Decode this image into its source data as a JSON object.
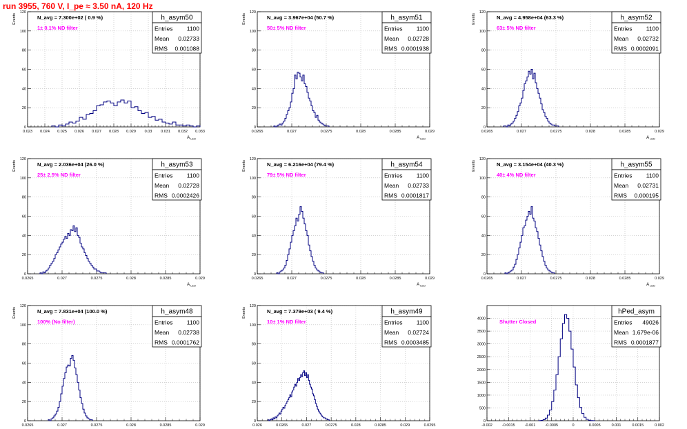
{
  "header": {
    "title": "run 3955,   760 V, I_pe ≈ 3.50 nA, 120 Hz"
  },
  "colors": {
    "title": "#ff0000",
    "histogram": "#000080",
    "annotation": "#ff00ff",
    "grid": "#bbbbbb"
  },
  "stat_labels": {
    "entries": "Entries",
    "mean": "Mean",
    "rms": "RMS"
  },
  "chart_data": [
    {
      "type": "bar",
      "name": "h_asym50",
      "navg": "N_avg = 7.300e+02 ( 0.9 %)",
      "annotation": "1± 0.1% ND filter",
      "entries": "1100",
      "mean": "0.02733",
      "rms": "0.001088",
      "xlim": [
        0.023,
        0.033
      ],
      "ylim": [
        0,
        120
      ],
      "xticks": [
        "0.023",
        "0.024",
        "0.025",
        "0.026",
        "0.027",
        "0.028",
        "0.029",
        "0.03",
        "0.031",
        "0.032",
        "0.033"
      ],
      "yticks": [
        "0",
        "20",
        "40",
        "60",
        "80",
        "100",
        "120"
      ],
      "xlabel": "A",
      "xsub": "LED",
      "ylabel": "Events",
      "bin_start": 0.0244,
      "bin_width": 0.0002,
      "values": [
        1,
        0,
        2,
        1,
        3,
        5,
        4,
        6,
        10,
        8,
        13,
        14,
        17,
        22,
        23,
        26,
        27,
        25,
        22,
        26,
        28,
        25,
        27,
        20,
        21,
        17,
        14,
        15,
        10,
        11,
        7,
        8,
        5,
        4,
        3,
        5,
        2,
        2,
        1,
        2,
        1,
        0,
        1
      ]
    },
    {
      "type": "bar",
      "name": "h_asym51",
      "navg": "N_avg = 3.967e+04 (50.7 %)",
      "annotation": "50± 5% ND filter",
      "entries": "1100",
      "mean": "0.02728",
      "rms": "0.0001938",
      "xlim": [
        0.0265,
        0.029
      ],
      "ylim": [
        0,
        120
      ],
      "xticks": [
        "0.0265",
        "0.027",
        "0.0275",
        "0.028",
        "0.0285",
        "0.029"
      ],
      "yticks": [
        "0",
        "20",
        "40",
        "60",
        "80",
        "100",
        "120"
      ],
      "xlabel": "A",
      "xsub": "LED",
      "ylabel": "Events",
      "bin_start": 0.02674,
      "bin_width": 2e-05,
      "values": [
        1,
        0,
        1,
        2,
        3,
        2,
        4,
        6,
        9,
        13,
        17,
        20,
        26,
        35,
        40,
        54,
        50,
        57,
        56,
        52,
        48,
        54,
        45,
        42,
        36,
        30,
        27,
        22,
        17,
        15,
        10,
        12,
        7,
        5,
        4,
        3,
        2,
        1,
        1,
        1
      ]
    },
    {
      "type": "bar",
      "name": "h_asym52",
      "navg": "N_avg = 4.958e+04 (63.3 %)",
      "annotation": "63± 5% ND filter",
      "entries": "1100",
      "mean": "0.02732",
      "rms": "0.0002091",
      "xlim": [
        0.0265,
        0.029
      ],
      "ylim": [
        0,
        120
      ],
      "xticks": [
        "0.0265",
        "0.027",
        "0.0275",
        "0.028",
        "0.0285",
        "0.029"
      ],
      "yticks": [
        "0",
        "20",
        "40",
        "60",
        "80",
        "100",
        "120"
      ],
      "xlabel": "A",
      "xsub": "LED",
      "ylabel": "Events",
      "bin_start": 0.02674,
      "bin_width": 2e-05,
      "values": [
        1,
        1,
        0,
        2,
        1,
        3,
        4,
        6,
        9,
        12,
        16,
        22,
        25,
        30,
        38,
        45,
        48,
        52,
        58,
        55,
        60,
        50,
        56,
        46,
        40,
        35,
        30,
        24,
        18,
        15,
        11,
        9,
        6,
        4,
        3,
        2,
        2,
        1,
        1,
        1
      ]
    },
    {
      "type": "bar",
      "name": "h_asym53",
      "navg": "N_avg = 2.036e+04 (26.0 %)",
      "annotation": "25± 2.5% ND filter",
      "entries": "1100",
      "mean": "0.02728",
      "rms": "0.0002426",
      "xlim": [
        0.0265,
        0.029
      ],
      "ylim": [
        0,
        120
      ],
      "xticks": [
        "0.0265",
        "0.027",
        "0.0275",
        "0.028",
        "0.0285",
        "0.029"
      ],
      "yticks": [
        "0",
        "20",
        "40",
        "60",
        "80",
        "100",
        "120"
      ],
      "xlabel": "A",
      "xsub": "LED",
      "ylabel": "Events",
      "bin_start": 0.02668,
      "bin_width": 2e-05,
      "values": [
        1,
        0,
        2,
        1,
        3,
        4,
        6,
        9,
        11,
        13,
        16,
        20,
        22,
        25,
        28,
        31,
        33,
        36,
        39,
        37,
        42,
        40,
        46,
        45,
        50,
        44,
        48,
        40,
        38,
        32,
        28,
        26,
        22,
        19,
        16,
        13,
        11,
        9,
        7,
        5,
        5,
        3,
        3,
        2,
        1,
        1,
        1,
        1
      ]
    },
    {
      "type": "bar",
      "name": "h_asym54",
      "navg": "N_avg = 6.216e+04 (79.4 %)",
      "annotation": "79± 5% ND filter",
      "entries": "1100",
      "mean": "0.02733",
      "rms": "0.0001817",
      "xlim": [
        0.0265,
        0.029
      ],
      "ylim": [
        0,
        120
      ],
      "xticks": [
        "0.0265",
        "0.027",
        "0.0275",
        "0.028",
        "0.0285",
        "0.029"
      ],
      "yticks": [
        "0",
        "20",
        "40",
        "60",
        "80",
        "100",
        "120"
      ],
      "xlabel": "A",
      "xsub": "LED",
      "ylabel": "Events",
      "bin_start": 0.02678,
      "bin_width": 2e-05,
      "values": [
        1,
        0,
        2,
        3,
        4,
        6,
        9,
        14,
        20,
        26,
        33,
        40,
        45,
        50,
        58,
        55,
        62,
        70,
        65,
        58,
        52,
        45,
        40,
        30,
        24,
        18,
        13,
        9,
        6,
        4,
        3,
        2,
        1,
        1
      ]
    },
    {
      "type": "bar",
      "name": "h_asym55",
      "navg": "N_avg = 3.154e+04 (40.3 %)",
      "annotation": "40± 4% ND filter",
      "entries": "1100",
      "mean": "0.02731",
      "rms": "0.000195",
      "xlim": [
        0.0265,
        0.029
      ],
      "ylim": [
        0,
        120
      ],
      "xticks": [
        "0.0265",
        "0.027",
        "0.0275",
        "0.028",
        "0.0285",
        "0.029"
      ],
      "yticks": [
        "0",
        "20",
        "40",
        "60",
        "80",
        "100",
        "120"
      ],
      "xlabel": "A",
      "xsub": "LED",
      "ylabel": "Events",
      "bin_start": 0.02676,
      "bin_width": 2e-05,
      "values": [
        1,
        0,
        1,
        2,
        3,
        4,
        7,
        10,
        15,
        20,
        27,
        33,
        40,
        48,
        50,
        56,
        60,
        65,
        62,
        70,
        58,
        55,
        48,
        44,
        37,
        30,
        24,
        18,
        13,
        9,
        6,
        4,
        3,
        2,
        1,
        1
      ]
    },
    {
      "type": "bar",
      "name": "h_asym48",
      "navg": "N_avg = 7.831e+04 (100.0 %)",
      "annotation": "100% (No filter)",
      "entries": "1100",
      "mean": "0.02738",
      "rms": "0.0001762",
      "xlim": [
        0.0265,
        0.029
      ],
      "ylim": [
        0,
        120
      ],
      "xticks": [
        "0.0265",
        "0.027",
        "0.0275",
        "0.028",
        "0.0285",
        "0.029"
      ],
      "yticks": [
        "0",
        "20",
        "40",
        "60",
        "80",
        "100",
        "120"
      ],
      "xlabel": "A",
      "xsub": "LED",
      "ylabel": "Events",
      "bin_start": 0.0268,
      "bin_width": 2e-05,
      "values": [
        1,
        0,
        2,
        3,
        5,
        7,
        10,
        14,
        20,
        28,
        36,
        44,
        50,
        56,
        58,
        57,
        65,
        68,
        63,
        55,
        48,
        40,
        32,
        24,
        18,
        12,
        8,
        5,
        3,
        2,
        1,
        1
      ]
    },
    {
      "type": "bar",
      "name": "h_asym49",
      "navg": "N_avg = 7.379e+03 ( 9.4 %)",
      "annotation": "10± 1% ND filter",
      "entries": "1100",
      "mean": "0.02724",
      "rms": "0.0003485",
      "xlim": [
        0.026,
        0.0295
      ],
      "ylim": [
        0,
        120
      ],
      "xticks": [
        "0.026",
        "0.0265",
        "0.027",
        "0.0275",
        "0.028",
        "0.0285",
        "0.029",
        "0.0295"
      ],
      "yticks": [
        "0",
        "20",
        "40",
        "60",
        "80",
        "100",
        "120"
      ],
      "xlabel": "A",
      "xsub": "LED",
      "ylabel": "Events",
      "bin_start": 0.02622,
      "bin_width": 2e-05,
      "values": [
        1,
        0,
        1,
        2,
        1,
        3,
        2,
        4,
        3,
        5,
        6,
        8,
        7,
        10,
        12,
        14,
        13,
        16,
        18,
        20,
        22,
        24,
        27,
        25,
        30,
        32,
        35,
        38,
        36,
        40,
        44,
        42,
        45,
        48,
        46,
        50,
        52,
        47,
        50,
        45,
        48,
        42,
        38,
        35,
        33,
        28,
        26,
        22,
        18,
        15,
        12,
        10,
        8,
        7,
        5,
        4,
        3,
        3,
        2,
        2,
        1,
        1
      ]
    },
    {
      "type": "bar",
      "name": "hPed_asym",
      "navg": "",
      "annotation": "Shutter Closed",
      "entries": "49026",
      "mean": "1.679e-06",
      "rms": "0.0001877",
      "xlim": [
        -0.002,
        0.002
      ],
      "ylim": [
        0,
        4500
      ],
      "xticks": [
        "-0.002",
        "-0.0015",
        "-0.001",
        "-0.0005",
        "0",
        "0.0005",
        "0.001",
        "0.0015",
        "0.002"
      ],
      "yticks": [
        "0",
        "500",
        "1000",
        "1500",
        "2000",
        "2500",
        "3000",
        "3500",
        "4000"
      ],
      "xlabel": "",
      "xsub": "",
      "ylabel": "",
      "bin_start": -0.0008,
      "bin_width": 5e-05,
      "values": [
        5,
        15,
        40,
        100,
        220,
        420,
        750,
        1200,
        1800,
        2500,
        3200,
        3800,
        4150,
        4000,
        3500,
        2800,
        2100,
        1400,
        900,
        520,
        280,
        130,
        55,
        20,
        8,
        3
      ]
    }
  ]
}
